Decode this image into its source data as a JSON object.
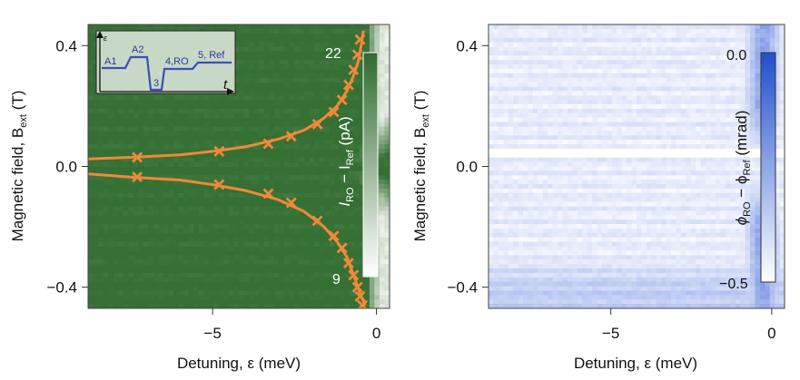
{
  "chart_data": [
    {
      "type": "heatmap",
      "panel": "left",
      "xlabel": "Detuning, ε (meV)",
      "ylabel": "Magnetic field, B",
      "ylabel_sub": "ext",
      "ylabel_unit": " (T)",
      "xlim": [
        -8.8,
        0.4
      ],
      "ylim": [
        -0.47,
        0.47
      ],
      "xticks": [
        {
          "v": -5,
          "label": "−5"
        },
        {
          "v": 0,
          "label": "0"
        }
      ],
      "yticks": [
        {
          "v": 0.4,
          "label": "0.4"
        },
        {
          "v": 0.0,
          "label": "0.0"
        },
        {
          "v": -0.4,
          "label": "−0.4"
        }
      ],
      "colormap": {
        "low": "#f2f5ef",
        "high": "#2f6b2e",
        "background": "#356f33"
      },
      "colorbar": {
        "max_label": "22",
        "min_label": "9",
        "label_parts": [
          "I",
          "RO",
          " − I",
          "Ref",
          " (pA)"
        ]
      },
      "fit_curve_color": "#f0893a",
      "fit_curve": {
        "upper": [
          [
            -8.8,
            0.025
          ],
          [
            -7.5,
            0.03
          ],
          [
            -6.0,
            0.038
          ],
          [
            -5.0,
            0.05
          ],
          [
            -4.0,
            0.065
          ],
          [
            -3.0,
            0.09
          ],
          [
            -2.2,
            0.12
          ],
          [
            -1.6,
            0.16
          ],
          [
            -1.2,
            0.2
          ],
          [
            -0.9,
            0.25
          ],
          [
            -0.7,
            0.3
          ],
          [
            -0.55,
            0.35
          ],
          [
            -0.45,
            0.41
          ],
          [
            -0.4,
            0.45
          ]
        ],
        "lower": [
          [
            -8.8,
            -0.025
          ],
          [
            -7.5,
            -0.035
          ],
          [
            -6.0,
            -0.045
          ],
          [
            -5.0,
            -0.06
          ],
          [
            -4.0,
            -0.08
          ],
          [
            -3.0,
            -0.11
          ],
          [
            -2.2,
            -0.15
          ],
          [
            -1.6,
            -0.2
          ],
          [
            -1.2,
            -0.25
          ],
          [
            -0.9,
            -0.3
          ],
          [
            -0.7,
            -0.36
          ],
          [
            -0.5,
            -0.42
          ],
          [
            -0.35,
            -0.46
          ]
        ]
      },
      "crosses": [
        [
          -7.3,
          0.03
        ],
        [
          -4.8,
          0.05
        ],
        [
          -3.3,
          0.075
        ],
        [
          -2.6,
          0.1
        ],
        [
          -1.8,
          0.14
        ],
        [
          -1.3,
          0.18
        ],
        [
          -1.05,
          0.22
        ],
        [
          -0.85,
          0.27
        ],
        [
          -0.7,
          0.32
        ],
        [
          -0.58,
          0.37
        ],
        [
          -0.5,
          0.42
        ],
        [
          -7.3,
          -0.035
        ],
        [
          -4.8,
          -0.06
        ],
        [
          -3.3,
          -0.09
        ],
        [
          -2.6,
          -0.12
        ],
        [
          -1.8,
          -0.18
        ],
        [
          -1.3,
          -0.23
        ],
        [
          -1.05,
          -0.27
        ],
        [
          -0.85,
          -0.32
        ],
        [
          -0.7,
          -0.36
        ],
        [
          -0.58,
          -0.4
        ],
        [
          -0.5,
          -0.43
        ],
        [
          -0.43,
          -0.46
        ]
      ],
      "inset": {
        "axis_y_label": "ε",
        "axis_x_label": "t",
        "segments": [
          "A1",
          "A2",
          "3",
          "4,RO",
          "5, Ref"
        ],
        "line_color": "#3d4fb5"
      }
    },
    {
      "type": "heatmap",
      "panel": "right",
      "xlabel": "Detuning, ε (meV)",
      "ylabel": "Magnetic field, B",
      "ylabel_sub": "ext",
      "ylabel_unit": " (T)",
      "xlim": [
        -8.8,
        0.4
      ],
      "ylim": [
        -0.47,
        0.47
      ],
      "xticks": [
        {
          "v": -5,
          "label": "−5"
        },
        {
          "v": 0,
          "label": "0"
        }
      ],
      "yticks": [
        {
          "v": 0.4,
          "label": "0.4"
        },
        {
          "v": 0.0,
          "label": "0.0"
        },
        {
          "v": -0.4,
          "label": "−0.4"
        }
      ],
      "colormap": {
        "low": "#2a55d6",
        "high": "#ffffff"
      },
      "colorbar": {
        "max_label": "0.0",
        "min_label": "−0.5",
        "label_parts": [
          "ϕ",
          "RO",
          " − ϕ",
          "Ref",
          " (mrad)"
        ]
      }
    }
  ]
}
